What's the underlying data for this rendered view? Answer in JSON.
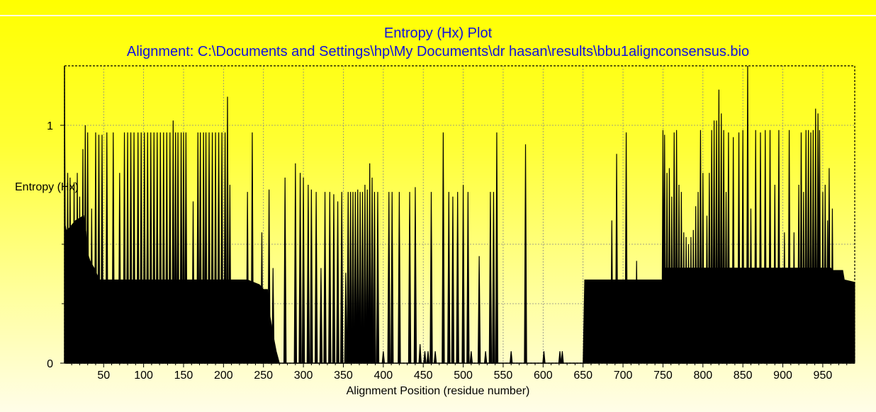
{
  "chart_data": {
    "type": "area",
    "title": "Entropy (Hx) Plot",
    "subtitle": "Alignment: C:\\Documents and Settings\\hp\\My Documents\\dr hasan\\results\\bbu1alignconsensus.bio",
    "xlabel": "Alignment Position (residue number)",
    "ylabel": "Entropy (Hx)",
    "xlim": [
      1,
      990
    ],
    "ylim": [
      0,
      1.25
    ],
    "x_ticks": [
      50,
      100,
      150,
      200,
      250,
      300,
      350,
      400,
      450,
      500,
      550,
      600,
      650,
      700,
      750,
      800,
      850,
      900,
      950
    ],
    "y_ticks": [
      0,
      1
    ],
    "minor_y_ticks": [
      0.25,
      0.5
    ],
    "grid": true,
    "colors": {
      "fill": "#000000",
      "title": "#1111dd",
      "grid": "#888888"
    },
    "baseline_segments": [
      {
        "x": [
          1,
          2,
          3,
          5,
          10,
          15,
          20,
          25,
          28,
          30,
          33,
          38,
          42,
          45,
          220,
          222,
          230,
          245,
          250,
          255,
          258,
          262,
          266,
          270
        ],
        "y": [
          1.25,
          0.58,
          0.56,
          0.56,
          0.58,
          0.6,
          0.61,
          0.62,
          0.55,
          0.46,
          0.43,
          0.4,
          0.37,
          0.35,
          0.35,
          0.35,
          0.35,
          0.33,
          0.31,
          0.31,
          0.2,
          0.12,
          0.05,
          0
        ]
      },
      {
        "x": [
          650,
          652,
          750,
          752,
          960,
          962,
          975,
          977,
          990
        ],
        "y": [
          0,
          0.35,
          0.35,
          0.4,
          0.4,
          0.39,
          0.39,
          0.35,
          0.34
        ]
      }
    ],
    "spikes": [
      [
        5,
        0.8
      ],
      [
        8,
        0.78
      ],
      [
        13,
        0.76
      ],
      [
        17,
        0.8
      ],
      [
        20,
        0.7
      ],
      [
        24,
        0.9
      ],
      [
        27,
        1.0
      ],
      [
        30,
        0.97
      ],
      [
        35,
        0.65
      ],
      [
        40,
        0.97
      ],
      [
        44,
        0.96
      ],
      [
        48,
        0.96
      ],
      [
        54,
        0.97
      ],
      [
        62,
        0.97
      ],
      [
        70,
        0.8
      ],
      [
        76,
        0.97
      ],
      [
        80,
        0.97
      ],
      [
        84,
        0.97
      ],
      [
        88,
        0.97
      ],
      [
        93,
        0.97
      ],
      [
        97,
        0.97
      ],
      [
        101,
        0.97
      ],
      [
        105,
        0.97
      ],
      [
        109,
        0.97
      ],
      [
        113,
        0.97
      ],
      [
        117,
        0.97
      ],
      [
        121,
        0.97
      ],
      [
        125,
        0.97
      ],
      [
        129,
        0.97
      ],
      [
        133,
        0.97
      ],
      [
        137,
        1.02
      ],
      [
        140,
        0.97
      ],
      [
        143,
        0.97
      ],
      [
        147,
        0.97
      ],
      [
        150,
        0.97
      ],
      [
        153,
        0.97
      ],
      [
        162,
        0.68
      ],
      [
        168,
        0.97
      ],
      [
        171,
        0.97
      ],
      [
        175,
        0.97
      ],
      [
        178,
        0.97
      ],
      [
        182,
        0.97
      ],
      [
        186,
        0.97
      ],
      [
        190,
        0.97
      ],
      [
        194,
        0.97
      ],
      [
        198,
        0.97
      ],
      [
        202,
        0.97
      ],
      [
        205,
        1.12
      ],
      [
        208,
        0.75
      ],
      [
        230,
        0.72
      ],
      [
        236,
        0.97
      ],
      [
        248,
        0.55
      ],
      [
        257,
        0.73
      ],
      [
        262,
        0.4
      ],
      [
        277,
        0.78
      ],
      [
        290,
        0.84
      ],
      [
        296,
        0.8
      ],
      [
        300,
        0.78
      ],
      [
        306,
        0.75
      ],
      [
        310,
        0.73
      ],
      [
        316,
        0.72
      ],
      [
        322,
        0.4
      ],
      [
        327,
        0.72
      ],
      [
        333,
        0.72
      ],
      [
        338,
        0.71
      ],
      [
        343,
        0.68
      ],
      [
        348,
        0.72
      ],
      [
        353,
        0.38
      ],
      [
        356,
        0.72
      ],
      [
        359,
        0.72
      ],
      [
        362,
        0.72
      ],
      [
        365,
        0.72
      ],
      [
        368,
        0.73
      ],
      [
        371,
        0.72
      ],
      [
        374,
        0.72
      ],
      [
        377,
        0.75
      ],
      [
        380,
        0.73
      ],
      [
        383,
        0.84
      ],
      [
        386,
        0.78
      ],
      [
        389,
        0.72
      ],
      [
        393,
        0.72
      ],
      [
        400,
        0.05
      ],
      [
        407,
        0.72
      ],
      [
        411,
        0.72
      ],
      [
        420,
        0.72
      ],
      [
        433,
        0.72
      ],
      [
        440,
        0.74
      ],
      [
        446,
        0.08
      ],
      [
        452,
        0.05
      ],
      [
        456,
        0.05
      ],
      [
        460,
        0.72
      ],
      [
        465,
        0.05
      ],
      [
        475,
        0.97
      ],
      [
        482,
        0.72
      ],
      [
        487,
        0.7
      ],
      [
        493,
        0.72
      ],
      [
        500,
        0.75
      ],
      [
        506,
        0.72
      ],
      [
        510,
        0.05
      ],
      [
        520,
        0.45
      ],
      [
        528,
        0.05
      ],
      [
        534,
        0.72
      ],
      [
        538,
        0.72
      ],
      [
        542,
        0.97
      ],
      [
        560,
        0.05
      ],
      [
        578,
        0.92
      ],
      [
        601,
        0.05
      ],
      [
        621,
        0.05
      ],
      [
        624,
        0.05
      ],
      [
        686,
        0.6
      ],
      [
        692,
        0.88
      ],
      [
        704,
        0.97
      ],
      [
        717,
        0.43
      ],
      [
        750,
        0.98
      ],
      [
        752,
        0.96
      ],
      [
        755,
        0.8
      ],
      [
        758,
        0.82
      ],
      [
        761,
        0.7
      ],
      [
        764,
        0.97
      ],
      [
        767,
        0.98
      ],
      [
        770,
        0.75
      ],
      [
        773,
        0.72
      ],
      [
        776,
        0.55
      ],
      [
        779,
        0.53
      ],
      [
        782,
        0.5
      ],
      [
        785,
        0.53
      ],
      [
        788,
        0.56
      ],
      [
        791,
        0.66
      ],
      [
        794,
        0.72
      ],
      [
        797,
        0.98
      ],
      [
        800,
        0.8
      ],
      [
        805,
        0.62
      ],
      [
        808,
        0.8
      ],
      [
        811,
        0.98
      ],
      [
        814,
        1.02
      ],
      [
        817,
        1.02
      ],
      [
        820,
        1.15
      ],
      [
        823,
        1.05
      ],
      [
        826,
        0.98
      ],
      [
        829,
        0.72
      ],
      [
        832,
        0.97
      ],
      [
        838,
        0.95
      ],
      [
        845,
        0.97
      ],
      [
        850,
        0.98
      ],
      [
        856,
        1.25
      ],
      [
        860,
        0.65
      ],
      [
        866,
        0.98
      ],
      [
        872,
        0.97
      ],
      [
        878,
        0.98
      ],
      [
        884,
        0.98
      ],
      [
        890,
        0.75
      ],
      [
        895,
        0.98
      ],
      [
        902,
        0.55
      ],
      [
        908,
        0.98
      ],
      [
        914,
        0.55
      ],
      [
        920,
        0.75
      ],
      [
        923,
        0.97
      ],
      [
        926,
        0.72
      ],
      [
        929,
        0.98
      ],
      [
        932,
        0.98
      ],
      [
        935,
        0.97
      ],
      [
        938,
        0.98
      ],
      [
        941,
        1.07
      ],
      [
        944,
        1.05
      ],
      [
        946,
        0.98
      ],
      [
        950,
        0.72
      ],
      [
        953,
        0.75
      ],
      [
        956,
        0.6
      ],
      [
        958,
        0.82
      ],
      [
        962,
        0.65
      ]
    ]
  }
}
